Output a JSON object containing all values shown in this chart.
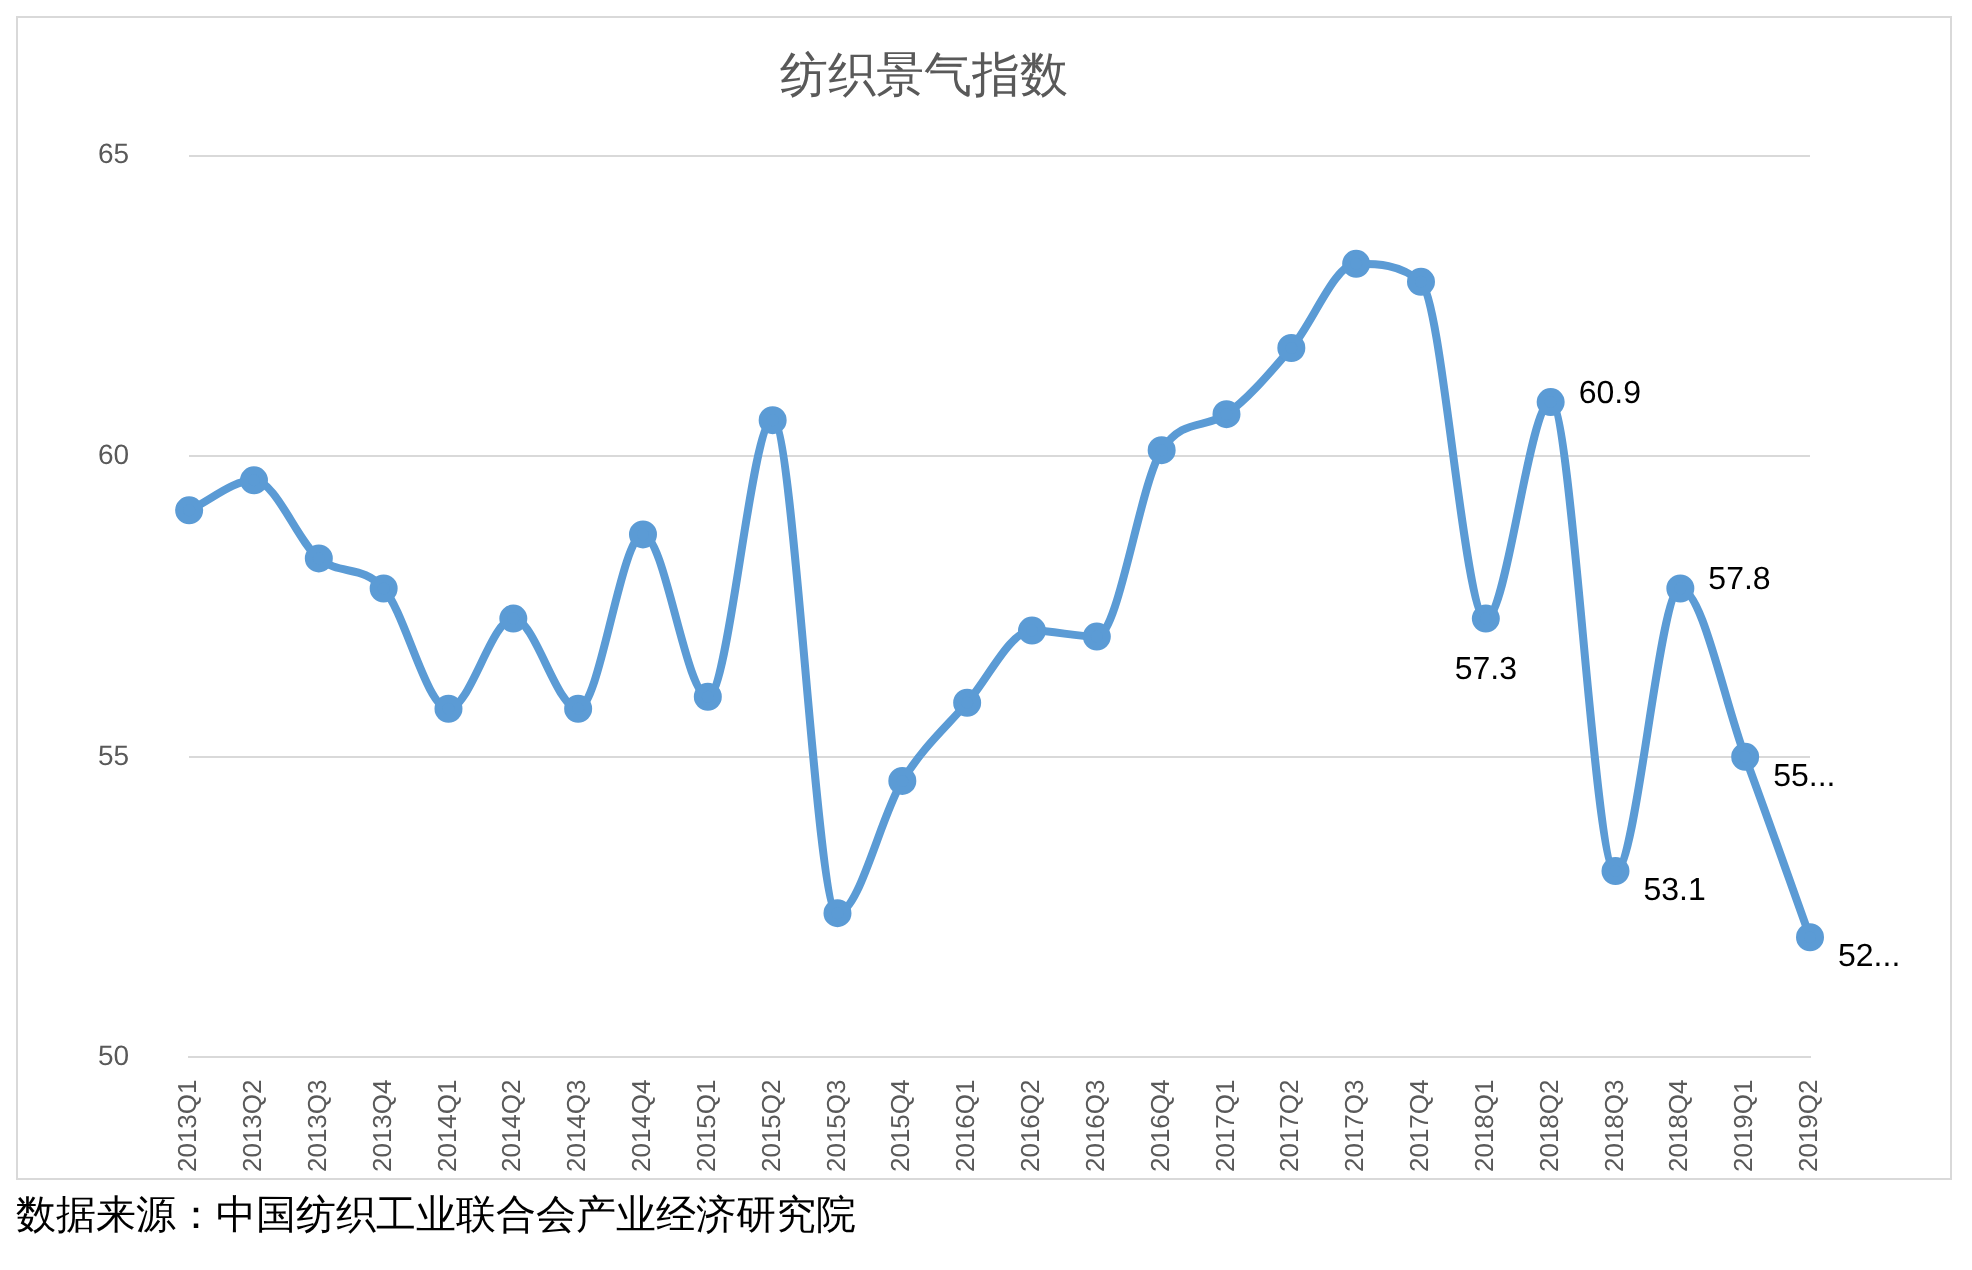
{
  "chart_data": {
    "type": "line",
    "title": "纺织景气指数",
    "categories": [
      "2013Q1",
      "2013Q2",
      "2013Q3",
      "2013Q4",
      "2014Q1",
      "2014Q2",
      "2014Q3",
      "2014Q4",
      "2015Q1",
      "2015Q2",
      "2015Q3",
      "2015Q4",
      "2016Q1",
      "2016Q2",
      "2016Q3",
      "2016Q4",
      "2017Q1",
      "2017Q2",
      "2017Q3",
      "2017Q4",
      "2018Q1",
      "2018Q2",
      "2018Q3",
      "2018Q4",
      "2019Q1",
      "2019Q2"
    ],
    "series": [
      {
        "color": "#5b9bd5",
        "values": [
          59.1,
          59.6,
          58.3,
          57.8,
          55.8,
          57.3,
          55.8,
          58.7,
          56.0,
          60.6,
          52.4,
          54.6,
          55.9,
          57.1,
          57.0,
          60.1,
          60.7,
          61.8,
          63.2,
          62.9,
          57.3,
          60.9,
          53.1,
          57.8,
          55.0,
          52.0
        ],
        "value_labels": [
          null,
          null,
          null,
          null,
          null,
          null,
          null,
          null,
          null,
          null,
          null,
          null,
          null,
          null,
          null,
          null,
          null,
          null,
          null,
          null,
          "57.3",
          "60.9",
          "53.1",
          "57.8",
          "55...",
          "52..."
        ]
      }
    ],
    "ylim": [
      50,
      65
    ],
    "yticks": [
      50,
      55,
      60,
      65
    ],
    "grid": "y",
    "legend": false,
    "marker": "circle",
    "line_style": "solid",
    "annotations": [
      "数据来源：中国纺织工业联合会产业经济研究院"
    ]
  }
}
